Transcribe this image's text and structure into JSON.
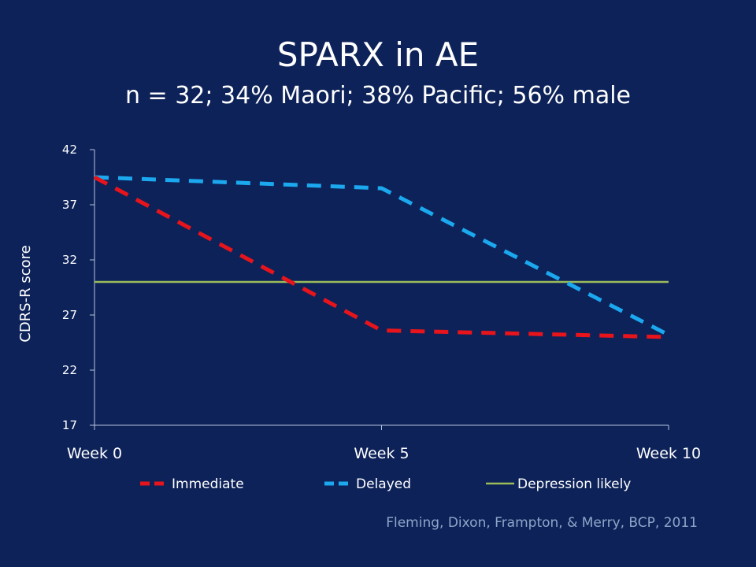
{
  "slide": {
    "title": "SPARX in AE",
    "subtitle": "n = 32; 34% Maori; 38% Pacific; 56% male",
    "citation": "Fleming, Dixon, Frampton, & Merry, BCP, 2011"
  },
  "chart_data": {
    "type": "line",
    "title": "",
    "xlabel": "",
    "ylabel": "CDRS-R score",
    "categories": [
      "Week 0",
      "Week 5",
      "Week 10"
    ],
    "ylim": [
      17,
      42
    ],
    "yticks": [
      17,
      22,
      27,
      32,
      37,
      42
    ],
    "grid": false,
    "legend_position": "bottom",
    "series": [
      {
        "name": "Immediate",
        "values": [
          39.5,
          25.6,
          25.0
        ],
        "color": "#e8141c",
        "style": "dashed"
      },
      {
        "name": "Delayed",
        "values": [
          39.5,
          38.5,
          25.2
        ],
        "color": "#1ba8ee",
        "style": "dashed"
      },
      {
        "name": "Depression likely",
        "values": [
          30.0,
          30.0,
          30.0
        ],
        "color": "#9bbb59",
        "style": "solid"
      }
    ]
  }
}
